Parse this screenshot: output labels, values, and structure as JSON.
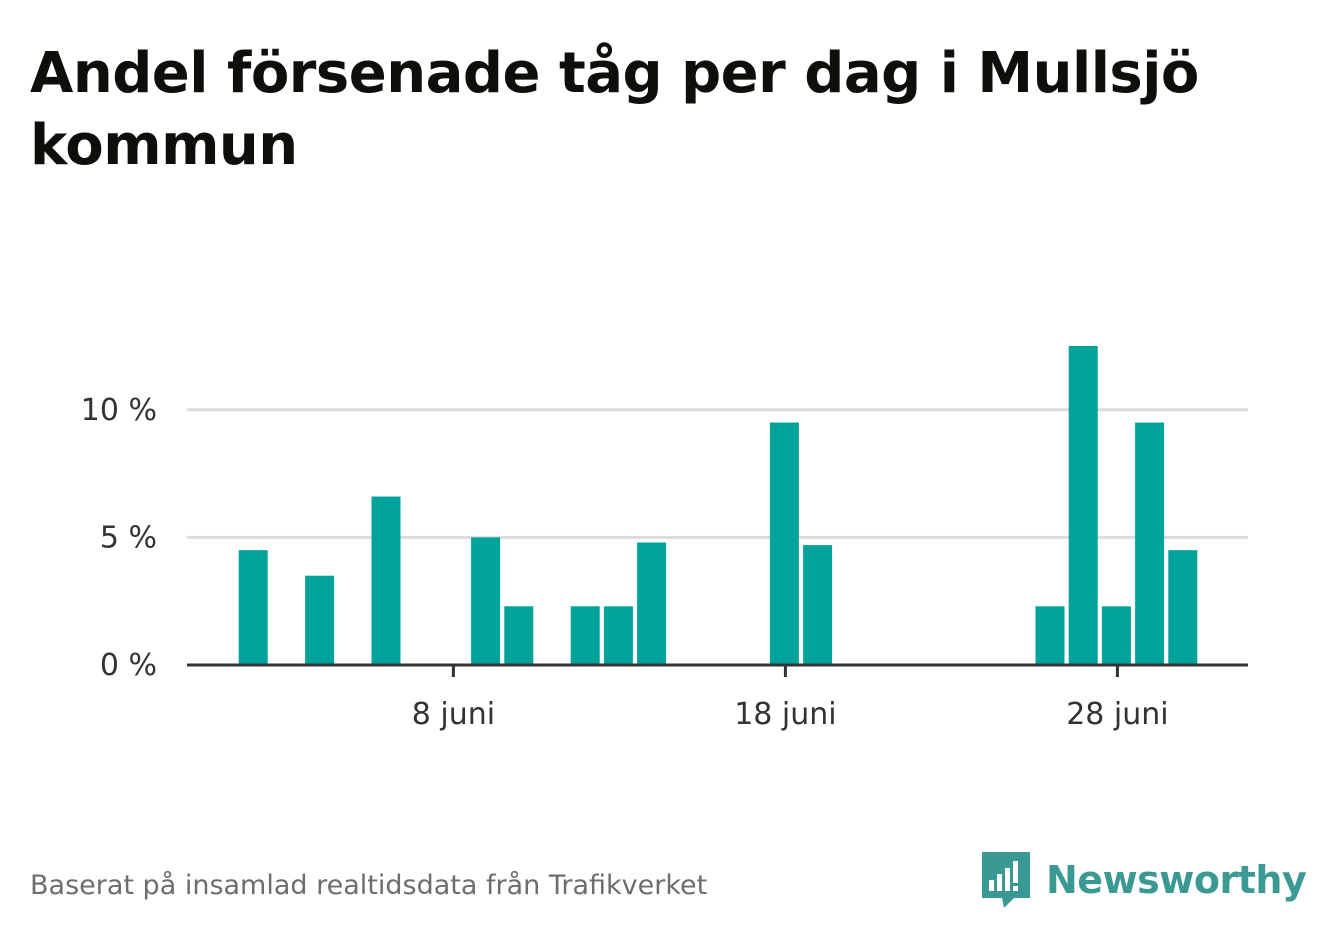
{
  "title": "Andel försenade tåg per dag i Mullsjö kommun",
  "source": "Baserat på insamlad realtidsdata från Trafikverket",
  "brand": {
    "name": "Newsworthy",
    "logo_icon": "newsworthy-chat-bar-icon"
  },
  "colors": {
    "bar": "#00a39a",
    "grid": "#dcdcdc",
    "axis": "#333333",
    "brand": "#3a9a93"
  },
  "chart_data": {
    "type": "bar",
    "title": "Andel försenade tåg per dag i Mullsjö kommun",
    "xlabel": "",
    "ylabel": "",
    "x": [
      "1 juni",
      "2 juni",
      "3 juni",
      "4 juni",
      "5 juni",
      "6 juni",
      "7 juni",
      "8 juni",
      "9 juni",
      "10 juni",
      "11 juni",
      "12 juni",
      "13 juni",
      "14 juni",
      "15 juni",
      "16 juni",
      "17 juni",
      "18 juni",
      "19 juni",
      "20 juni",
      "21 juni",
      "22 juni",
      "23 juni",
      "24 juni",
      "25 juni",
      "26 juni",
      "27 juni",
      "28 juni",
      "29 juni",
      "30 juni"
    ],
    "values": [
      0,
      4.5,
      0,
      3.5,
      0,
      6.6,
      0,
      0,
      5.0,
      2.3,
      0,
      2.3,
      2.3,
      4.8,
      0,
      0,
      0,
      9.5,
      4.7,
      0,
      0,
      0,
      0,
      0,
      0,
      2.3,
      12.5,
      2.3,
      9.5,
      4.5
    ],
    "ylim": [
      0,
      12.5
    ],
    "yticks": [
      0,
      5,
      10
    ],
    "ytick_labels": [
      "0 %",
      "5 %",
      "10 %"
    ],
    "xtick_labels": [
      {
        "index": 7,
        "label": "8 juni"
      },
      {
        "index": 17,
        "label": "18 juni"
      },
      {
        "index": 27,
        "label": "28 juni"
      }
    ],
    "grid": true,
    "legend": "none"
  }
}
